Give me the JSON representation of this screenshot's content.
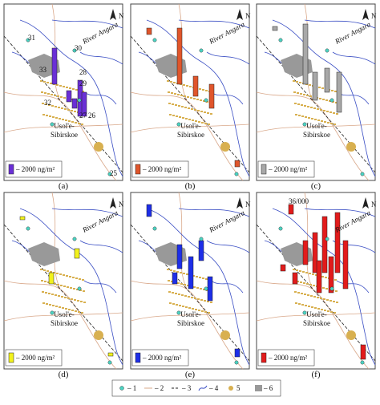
{
  "panels": [
    {
      "label": "(a)",
      "legend_text": "– 2000 ng/m²",
      "river": "River Angara",
      "city": [
        "Usol'e-",
        "Sibirskoe"
      ],
      "color": "#6a2fd6",
      "stations": [
        "31",
        "30",
        "33",
        "28",
        "29",
        "32",
        "27",
        "26",
        "25"
      ]
    },
    {
      "label": "(b)",
      "legend_text": "– 2000 ng/m²",
      "river": "River Angara",
      "city": [
        "Usol'e-",
        "Sibirskoe"
      ],
      "color": "#e0552b",
      "stations": []
    },
    {
      "label": "(c)",
      "legend_text": "– 2000 ng/m²",
      "river": "River Angara",
      "city": [
        "Usol'e-",
        "Sibirskoe"
      ],
      "color": "#a8a8a8",
      "stations": []
    },
    {
      "label": "(d)",
      "legend_text": "– 2000 ng/m²",
      "river": "River Angara",
      "city": [
        "Usol'e-",
        "Sibirskoe"
      ],
      "color": "#f2f21c",
      "stations": []
    },
    {
      "label": "(e)",
      "legend_text": "– 2000 ng/m²",
      "river": "River Angara",
      "city": [
        "Usol'e-",
        "Sibirskoe"
      ],
      "color": "#1d2ee8",
      "stations": []
    },
    {
      "label": "(f)",
      "legend_text": "– 2000 ng/m²",
      "river": "River Angara",
      "city": [
        "Usol'e-",
        "Sibirskoe"
      ],
      "color": "#e21b1b",
      "stations": [
        "36/000"
      ]
    }
  ],
  "north": "N",
  "legend_items": [
    "– 1",
    "– 2",
    "– 3",
    "– 4",
    "5",
    "– 6"
  ]
}
